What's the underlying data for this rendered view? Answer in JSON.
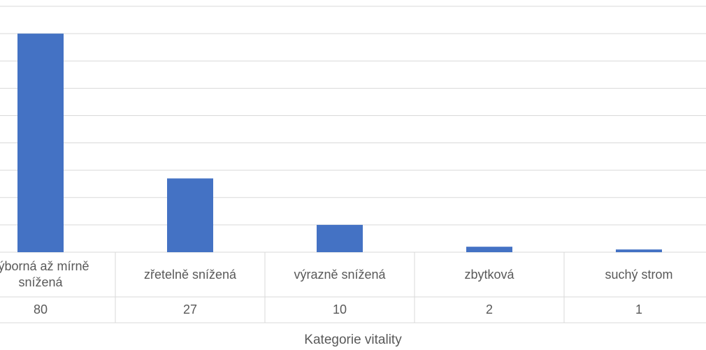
{
  "chart_data": {
    "type": "bar",
    "categories": [
      "výborná až mírně snížená",
      "zřetelně snížená",
      "výrazně snížená",
      "zbytková",
      "suchý strom"
    ],
    "values": [
      80,
      27,
      10,
      2,
      1
    ],
    "color": "#4472c4",
    "ylim": [
      0,
      90
    ],
    "yticks": [
      0,
      10,
      20,
      30,
      40,
      50,
      60,
      70,
      80,
      90
    ],
    "grid": true,
    "x_label": "Kategorie vitality"
  }
}
